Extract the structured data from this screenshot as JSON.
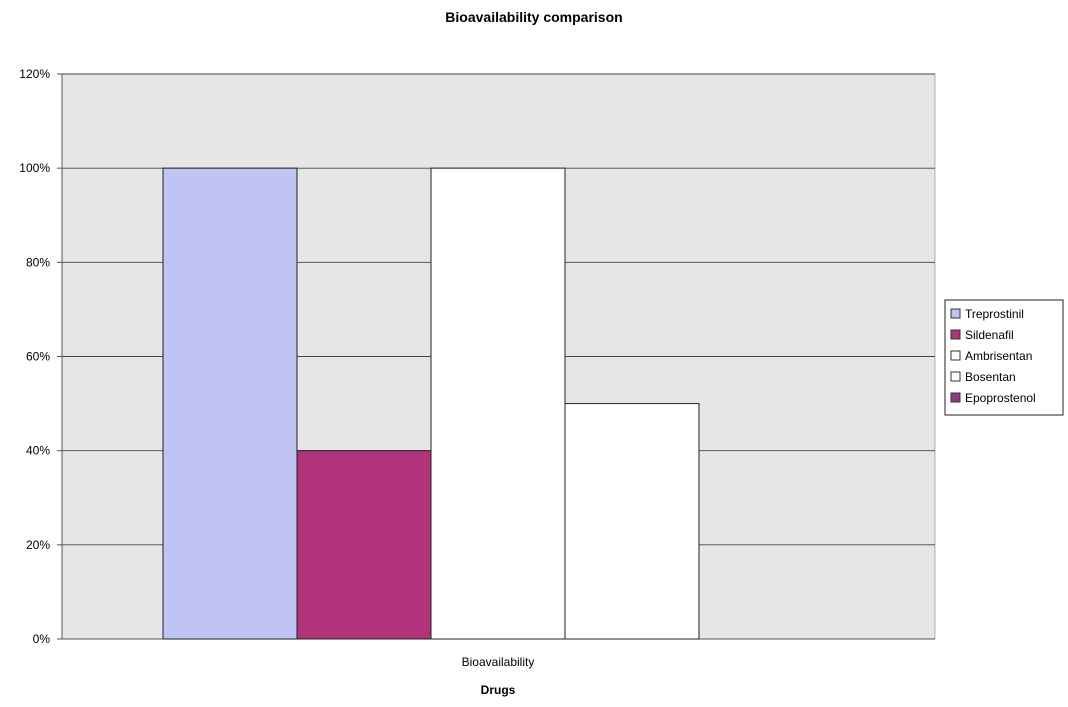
{
  "chart_data": {
    "type": "bar",
    "title": "Bioavailability comparison",
    "categories": [
      "Bioavailability"
    ],
    "xlabel": "Drugs",
    "ylabel": "",
    "ylim": [
      0,
      120
    ],
    "y_tick_labels": [
      "0%",
      "20%",
      "40%",
      "60%",
      "80%",
      "100%",
      "120%"
    ],
    "y_ticks": [
      0,
      20,
      40,
      60,
      80,
      100,
      120
    ],
    "grid": true,
    "legend_position": "right",
    "series": [
      {
        "name": "Treprostinil",
        "values": [
          100
        ],
        "color": "#C0C4F2"
      },
      {
        "name": "Sildenafil",
        "values": [
          40
        ],
        "color": "#B1337A"
      },
      {
        "name": "Ambrisentan",
        "values": [
          100
        ],
        "color": "#FFFFFF"
      },
      {
        "name": "Bosentan",
        "values": [
          50
        ],
        "color": "#FFFFFF"
      },
      {
        "name": "Epoprostenol",
        "values": [
          0
        ],
        "color": "#8B3A8C"
      }
    ],
    "colors": {
      "plot_background": "#E6E6E6",
      "gridline": "#444444"
    }
  }
}
